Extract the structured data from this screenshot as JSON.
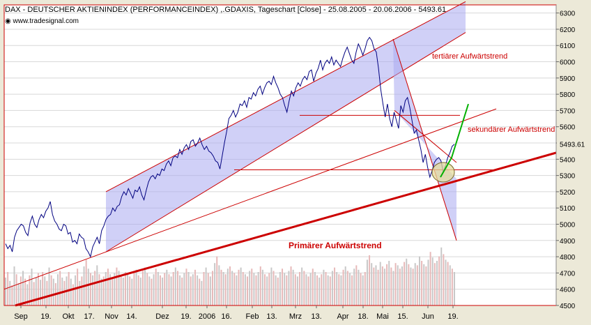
{
  "header": {
    "title": "DAX  - DEUTSCHER AKTIENINDEX (PERFORMANCEINDEX) ,.GDAXIS, Tageschart [Close] - 25.08.2005 - 20.06.2006 - 5493.61",
    "source": "www.tradesignal.com"
  },
  "annotations": {
    "tertiary": "tertiärer Aufwärtstrend",
    "secondary": "sekundärer Aufwärtstrend",
    "primary": "Primärer Aufwärtstrend"
  },
  "colors": {
    "price_line": "#000080",
    "channel_fill": "#a9a9f0",
    "trend_line": "#cc0000",
    "green_arrow": "#00b000",
    "circle_fill": "#e6dc9c",
    "volume_bar": "#c8c8c8",
    "frame": "#cc0000",
    "background": "#ece9d8"
  },
  "chart_data": {
    "type": "line",
    "title": "DAX  - DEUTSCHER AKTIENINDEX (PERFORMANCEINDEX) ,.GDAXIS, Tageschart [Close] - 25.08.2005 - 20.06.2006 - 5493.61",
    "x_tick_labels": [
      "Sep",
      "19.",
      "Okt",
      "17.",
      "Nov",
      "14.",
      "Dez",
      "19.",
      "2006",
      "16.",
      "Feb",
      "13.",
      "Mrz",
      "13.",
      "Apr",
      "18.",
      "Mai",
      "15.",
      "Jun",
      "19."
    ],
    "y_tick_labels": [
      "4500",
      "4600",
      "4700",
      "4800",
      "4900",
      "5000",
      "5100",
      "5200",
      "5300",
      "5400",
      "5500",
      "5600",
      "5700",
      "5800",
      "5900",
      "6000",
      "6100",
      "6200",
      "6300"
    ],
    "ylim": [
      4500,
      6350
    ],
    "last_value_label": "5493.61",
    "series": [
      {
        "values": [
          4880,
          4850,
          4870,
          4830,
          4920,
          4960,
          4980,
          5000,
          4990,
          4950,
          4930,
          5010,
          5050,
          5000,
          4980,
          5030,
          5060,
          5040,
          5080,
          5100,
          5140,
          5060,
          5020,
          5000,
          4970,
          4960,
          5000,
          4990,
          4940,
          4950,
          4890,
          4900,
          4880,
          4940,
          4920,
          4910,
          4850,
          4830,
          4800,
          4860,
          4890,
          4920,
          4880,
          4960,
          4990,
          5030,
          5050,
          5060,
          5100,
          5080,
          5110,
          5120,
          5170,
          5200,
          5180,
          5220,
          5190,
          5160,
          5210,
          5200,
          5230,
          5180,
          5150,
          5210,
          5260,
          5290,
          5300,
          5280,
          5310,
          5300,
          5340,
          5330,
          5370,
          5390,
          5360,
          5410,
          5420,
          5410,
          5460,
          5430,
          5470,
          5490,
          5460,
          5510,
          5520,
          5480,
          5500,
          5530,
          5490,
          5460,
          5480,
          5450,
          5440,
          5420,
          5390,
          5380,
          5340,
          5420,
          5500,
          5570,
          5650,
          5670,
          5700,
          5660,
          5690,
          5740,
          5730,
          5760,
          5720,
          5780,
          5770,
          5810,
          5790,
          5830,
          5850,
          5800,
          5840,
          5870,
          5880,
          5860,
          5910,
          5870,
          5840,
          5800,
          5780,
          5730,
          5690,
          5760,
          5820,
          5790,
          5840,
          5870,
          5850,
          5890,
          5910,
          5890,
          5940,
          5950,
          5880,
          5930,
          5960,
          6010,
          5950,
          5990,
          6010,
          5990,
          6030,
          5980,
          6010,
          5990,
          5970,
          6020,
          6060,
          6090,
          6050,
          6010,
          5990,
          6060,
          6110,
          6080,
          6040,
          6080,
          6130,
          6150,
          6130,
          6080,
          6060,
          5960,
          5830,
          5740,
          5660,
          5740,
          5650,
          5600,
          5690,
          5640,
          5590,
          5730,
          5690,
          5760,
          5780,
          5720,
          5640,
          5560,
          5580,
          5520,
          5460,
          5380,
          5430,
          5350,
          5290,
          5330,
          5380,
          5400,
          5410,
          5390,
          5320,
          5360,
          5410,
          5440,
          5480,
          5493
        ]
      }
    ],
    "volume": [
      25,
      30,
      22,
      18,
      35,
      28,
      20,
      26,
      31,
      24,
      19,
      27,
      33,
      21,
      25,
      29,
      23,
      30,
      26,
      22,
      34,
      27,
      24,
      20,
      28,
      31,
      25,
      22,
      26,
      30,
      24,
      19,
      27,
      33,
      22,
      26,
      35,
      41,
      33,
      29,
      27,
      31,
      36,
      28,
      24,
      26,
      30,
      33,
      28,
      25,
      29,
      34,
      31,
      27,
      25,
      30,
      28,
      26,
      24,
      29,
      32,
      27,
      25,
      31,
      34,
      29,
      26,
      24,
      28,
      33,
      30,
      27,
      25,
      29,
      32,
      28,
      26,
      30,
      34,
      31,
      27,
      25,
      29,
      33,
      30,
      26,
      28,
      32,
      27,
      24,
      22,
      30,
      34,
      29,
      26,
      31,
      38,
      44,
      36,
      32,
      30,
      28,
      33,
      35,
      31,
      29,
      27,
      32,
      34,
      30,
      28,
      26,
      31,
      33,
      29,
      27,
      30,
      35,
      32,
      28,
      26,
      29,
      34,
      31,
      27,
      25,
      30,
      33,
      29,
      27,
      31,
      35,
      32,
      28,
      26,
      30,
      34,
      31,
      28,
      26,
      29,
      33,
      30,
      27,
      25,
      28,
      32,
      30,
      27,
      26,
      31,
      34,
      30,
      28,
      27,
      32,
      35,
      31,
      29,
      27,
      33,
      36,
      32,
      29,
      27,
      30,
      41,
      45,
      38,
      34,
      36,
      32,
      39,
      35,
      33,
      37,
      40,
      34,
      31,
      38,
      36,
      33,
      35,
      39,
      42,
      37,
      34,
      33,
      38,
      36,
      44,
      40,
      37,
      35,
      41,
      48,
      43,
      38,
      40,
      44,
      52,
      46,
      41,
      39,
      36,
      33,
      30
    ]
  }
}
